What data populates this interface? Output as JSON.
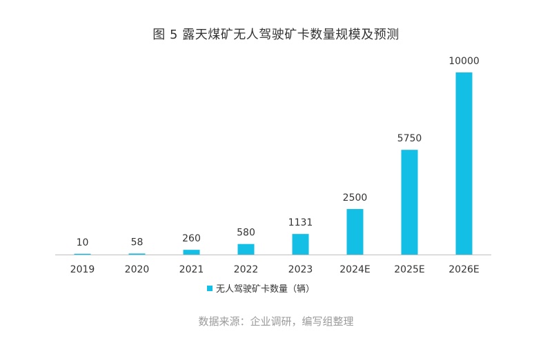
{
  "title": "图 5 露天煤矿无人驾驶矿卡数量规模及预测",
  "source": "数据来源：企业调研，编写组整理",
  "chart_data": {
    "type": "bar",
    "categories": [
      "2019",
      "2020",
      "2021",
      "2022",
      "2023",
      "2024E",
      "2025E",
      "2026E"
    ],
    "series": [
      {
        "name": "无人驾驶矿卡数量（辆）",
        "values": [
          10,
          58,
          260,
          580,
          1131,
          2500,
          5750,
          10000
        ]
      }
    ],
    "data_labels": [
      "10",
      "58",
      "260",
      "580",
      "1131",
      "2500",
      "5750",
      "10000"
    ],
    "ylim": [
      0,
      10000
    ],
    "grid": false,
    "legend_position": "bottom",
    "bar_color": "#14bfe6",
    "axis_color": "#bfbfbf"
  }
}
